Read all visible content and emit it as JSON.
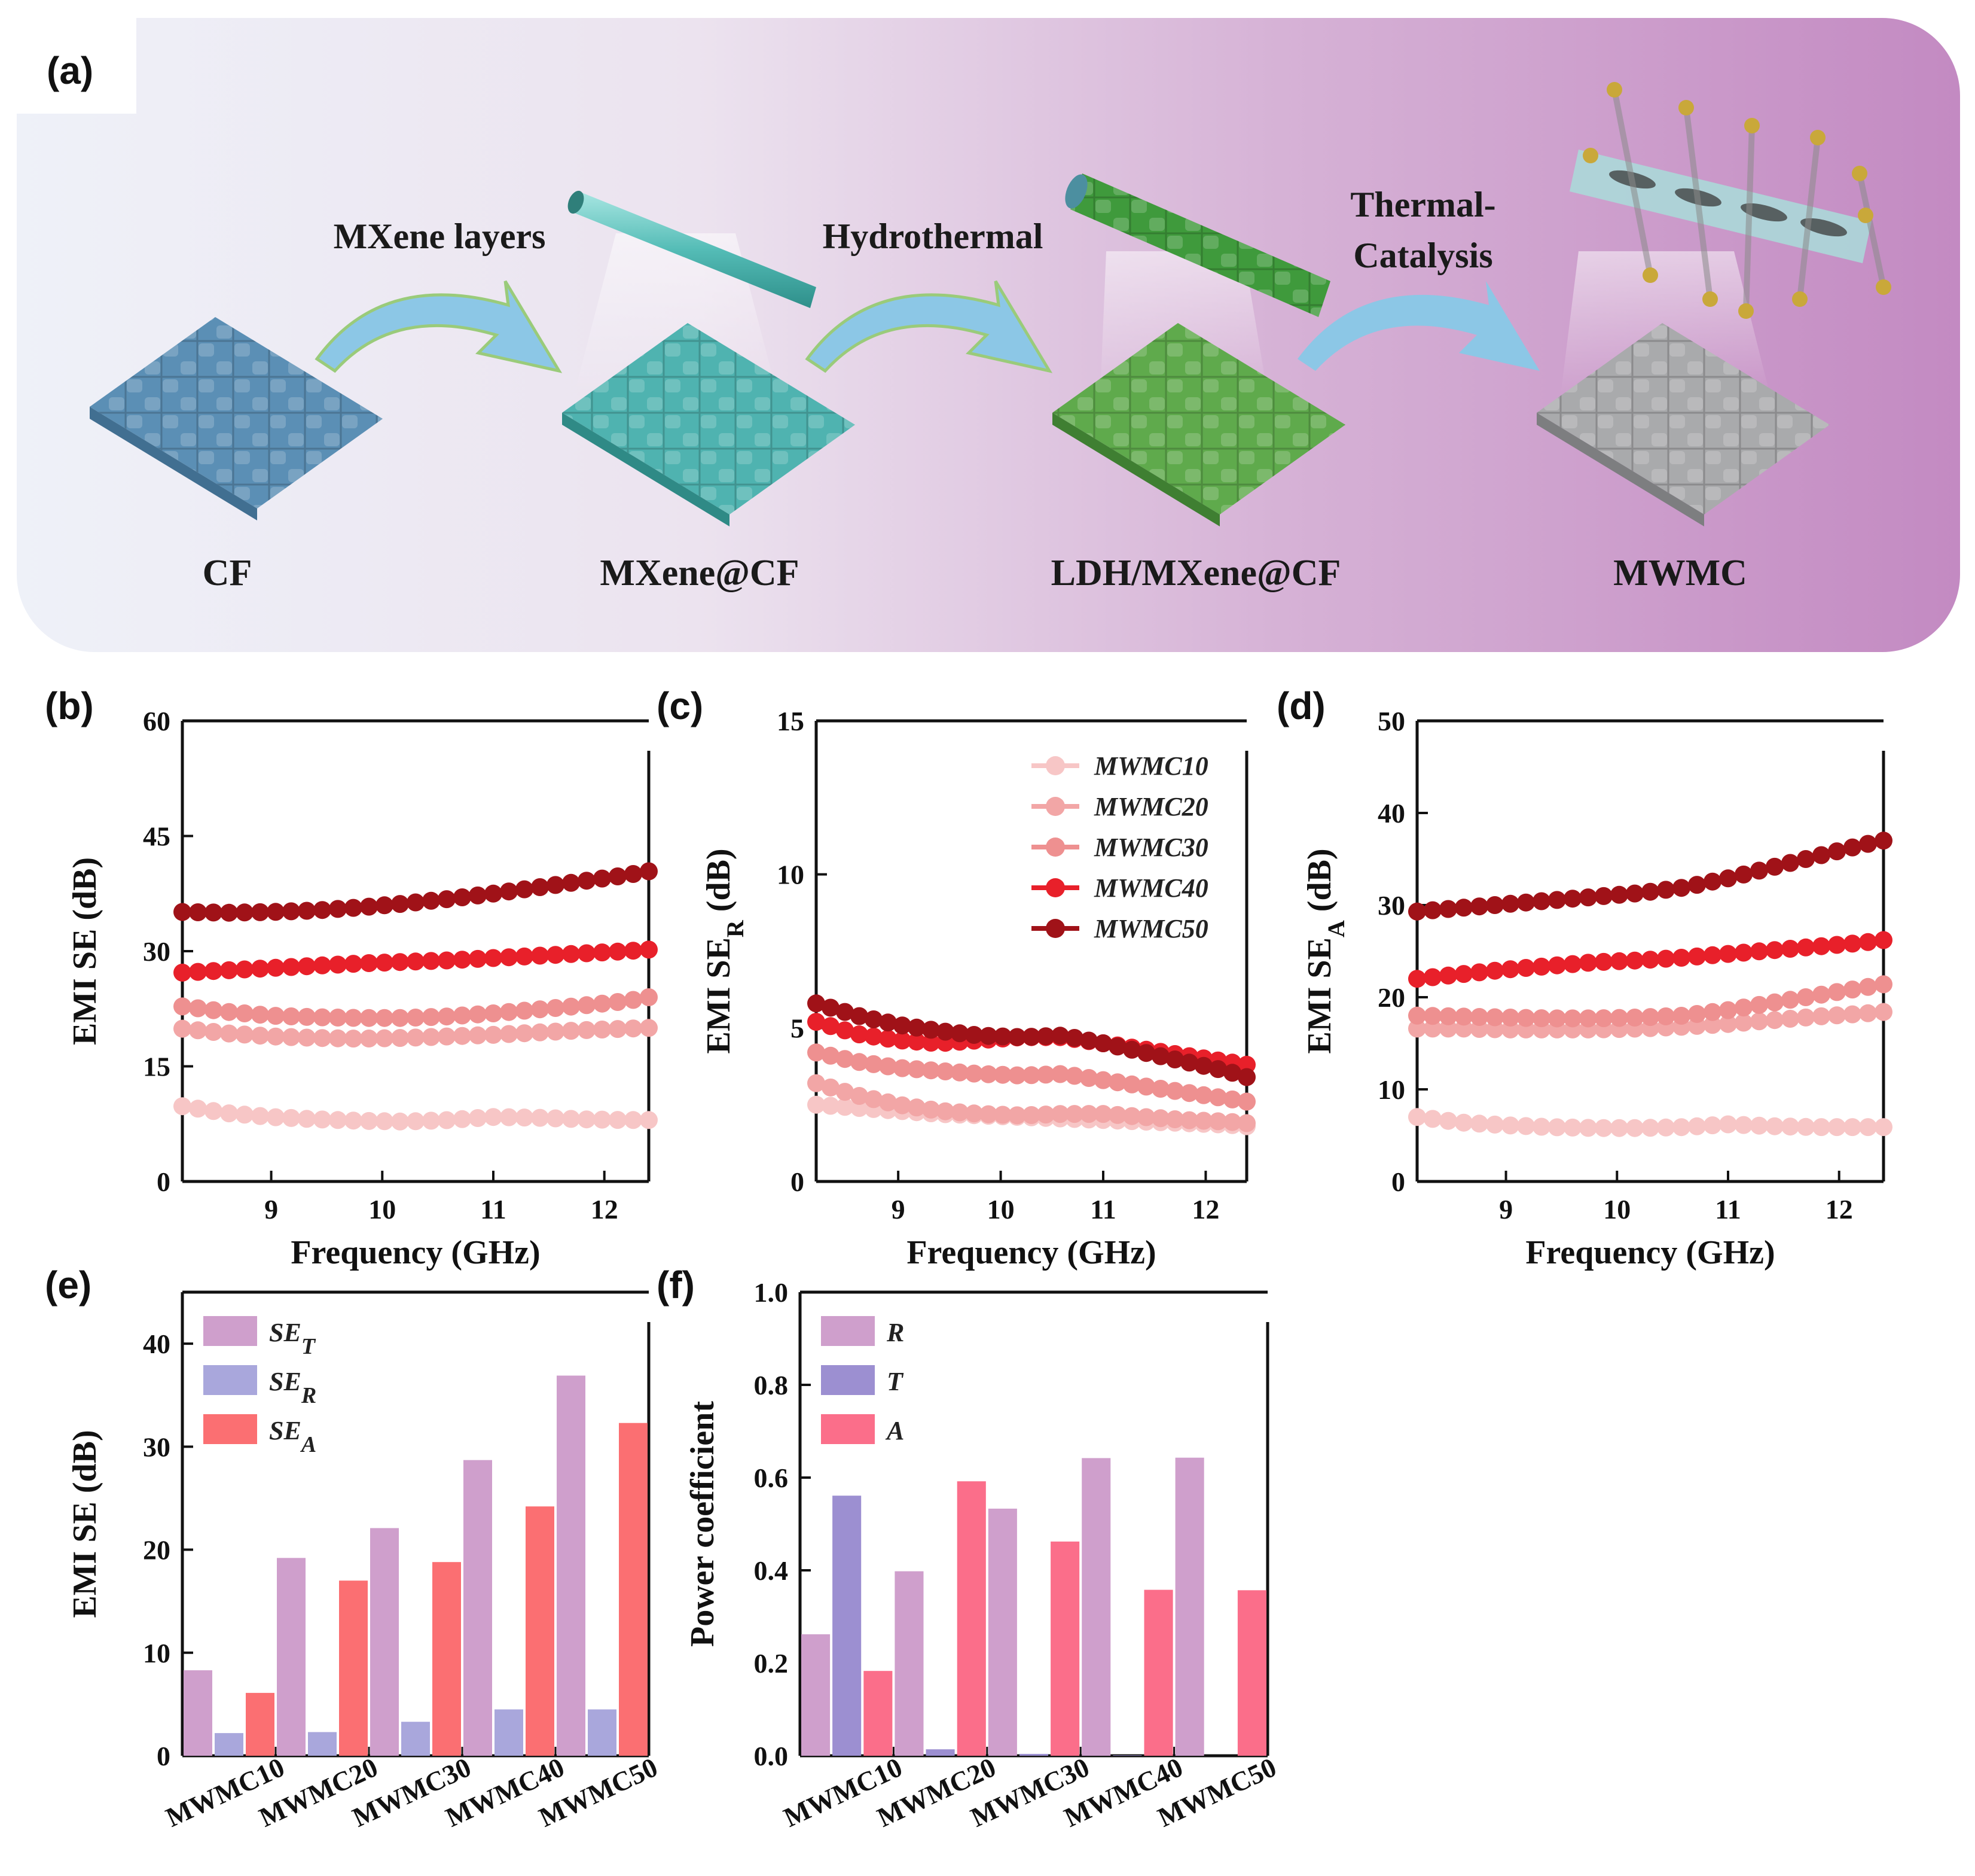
{
  "panel_labels": {
    "a": "(a)",
    "b": "(b)",
    "c": "(c)",
    "d": "(d)",
    "e": "(e)",
    "f": "(f)"
  },
  "scheme": {
    "stages": [
      "CF",
      "MXene@CF",
      "LDH/MXene@CF",
      "MWMC"
    ],
    "steps": [
      "MXene layers",
      "Hydrothermal",
      "Thermal-",
      "Catalysis"
    ],
    "colors": {
      "cf": "#5b8fb5",
      "mxene": "#4fb3b0",
      "ldh": "#5faa4c",
      "mwmc": "#a9aaac",
      "arrow": "#8cc7e6"
    }
  },
  "series_colors": [
    "#f7c6c6",
    "#f2a6a6",
    "#ee9090",
    "#e8202a",
    "#a01218"
  ],
  "bar_colors": {
    "SE_T": "#cf9fcc",
    "SE_R": "#a9a7dc",
    "SE_A": "#fb6f72",
    "R": "#cf9fcc",
    "T": "#9c8fd1",
    "A": "#fb6e8a"
  },
  "chart_data": [
    {
      "id": "b",
      "type": "scatter",
      "title": "",
      "xlabel": "Frequency (GHz)",
      "ylabel": "EMI SE (dB)",
      "xlim": [
        8.2,
        12.4
      ],
      "ylim": [
        0,
        60
      ],
      "xticks": [
        "9",
        "10",
        "11",
        "12"
      ],
      "yticks": [
        "0",
        "15",
        "30",
        "45",
        "60"
      ],
      "y_top_label": "60",
      "x": [
        8.2,
        8.6,
        9.0,
        9.4,
        9.8,
        10.2,
        10.6,
        11.0,
        11.4,
        11.8,
        12.2,
        12.4
      ],
      "series": [
        {
          "name": "MWMC10",
          "values": [
            9.8,
            8.9,
            8.4,
            8.1,
            7.9,
            7.8,
            8.0,
            8.4,
            8.3,
            8.1,
            8.0,
            8.0
          ]
        },
        {
          "name": "MWMC20",
          "values": [
            19.9,
            19.3,
            18.9,
            18.7,
            18.6,
            18.7,
            18.9,
            19.1,
            19.4,
            19.7,
            19.9,
            20.0
          ]
        },
        {
          "name": "MWMC30",
          "values": [
            22.8,
            22.1,
            21.6,
            21.4,
            21.3,
            21.3,
            21.5,
            21.9,
            22.4,
            22.9,
            23.5,
            24.0
          ]
        },
        {
          "name": "MWMC40",
          "values": [
            27.2,
            27.5,
            27.8,
            28.1,
            28.4,
            28.6,
            28.8,
            29.1,
            29.4,
            29.7,
            30.0,
            30.2
          ]
        },
        {
          "name": "MWMC50",
          "values": [
            35.1,
            35.0,
            35.1,
            35.3,
            35.7,
            36.2,
            36.8,
            37.5,
            38.3,
            39.1,
            39.9,
            40.4
          ]
        }
      ]
    },
    {
      "id": "c",
      "type": "scatter",
      "title": "",
      "xlabel": "Frequency (GHz)",
      "ylabel": "EMI SE",
      "ylabel_sub": "R",
      "ylabel_unit": "(dB)",
      "xlim": [
        8.2,
        12.4
      ],
      "ylim": [
        0,
        15
      ],
      "xticks": [
        "9",
        "10",
        "11",
        "12"
      ],
      "yticks": [
        "0",
        "5",
        "10",
        "15"
      ],
      "legend": [
        "MWMC10",
        "MWMC20",
        "MWMC30",
        "MWMC40",
        "MWMC50"
      ],
      "x": [
        8.2,
        8.6,
        9.0,
        9.4,
        9.8,
        10.2,
        10.6,
        11.0,
        11.4,
        11.8,
        12.2,
        12.4
      ],
      "series": [
        {
          "name": "MWMC10",
          "values": [
            2.5,
            2.4,
            2.3,
            2.2,
            2.15,
            2.1,
            2.05,
            2.0,
            1.95,
            1.9,
            1.85,
            1.8
          ]
        },
        {
          "name": "MWMC20",
          "values": [
            3.2,
            2.8,
            2.5,
            2.3,
            2.2,
            2.15,
            2.2,
            2.2,
            2.1,
            2.0,
            1.95,
            1.9
          ]
        },
        {
          "name": "MWMC30",
          "values": [
            4.2,
            3.9,
            3.7,
            3.6,
            3.5,
            3.45,
            3.5,
            3.3,
            3.1,
            2.9,
            2.7,
            2.6
          ]
        },
        {
          "name": "MWMC40",
          "values": [
            5.2,
            4.8,
            4.6,
            4.5,
            4.6,
            4.7,
            4.7,
            4.5,
            4.3,
            4.1,
            3.9,
            3.8
          ]
        },
        {
          "name": "MWMC50",
          "values": [
            5.8,
            5.4,
            5.1,
            4.9,
            4.75,
            4.7,
            4.75,
            4.5,
            4.2,
            3.9,
            3.6,
            3.4
          ]
        }
      ]
    },
    {
      "id": "d",
      "type": "scatter",
      "title": "",
      "xlabel": "Frequency (GHz)",
      "ylabel": "EMI SE",
      "ylabel_sub": "A",
      "ylabel_unit": "(dB)",
      "xlim": [
        8.2,
        12.4
      ],
      "ylim": [
        0,
        50
      ],
      "xticks": [
        "9",
        "10",
        "11",
        "12"
      ],
      "yticks": [
        "0",
        "10",
        "20",
        "30",
        "40",
        "50"
      ],
      "x": [
        8.2,
        8.6,
        9.0,
        9.4,
        9.8,
        10.2,
        10.6,
        11.0,
        11.4,
        11.8,
        12.2,
        12.4
      ],
      "series": [
        {
          "name": "MWMC10",
          "values": [
            7.0,
            6.4,
            6.1,
            5.9,
            5.8,
            5.8,
            5.9,
            6.2,
            6.0,
            5.9,
            5.9,
            5.9
          ]
        },
        {
          "name": "MWMC20",
          "values": [
            16.6,
            16.6,
            16.5,
            16.5,
            16.5,
            16.6,
            16.8,
            17.1,
            17.5,
            17.9,
            18.2,
            18.4
          ]
        },
        {
          "name": "MWMC30",
          "values": [
            18.0,
            17.9,
            17.8,
            17.7,
            17.7,
            17.8,
            18.0,
            18.6,
            19.4,
            20.2,
            21.0,
            21.4
          ]
        },
        {
          "name": "MWMC40",
          "values": [
            22.0,
            22.5,
            23.0,
            23.4,
            23.8,
            24.0,
            24.3,
            24.7,
            25.1,
            25.5,
            25.9,
            26.2
          ]
        },
        {
          "name": "MWMC50",
          "values": [
            29.3,
            29.7,
            30.1,
            30.5,
            30.9,
            31.3,
            31.9,
            32.9,
            34.1,
            35.3,
            36.5,
            37.0
          ]
        }
      ]
    },
    {
      "id": "e",
      "type": "bar",
      "title": "",
      "xlabel": "",
      "ylabel": "EMI SE (dB)",
      "ylim": [
        0,
        45
      ],
      "yticks": [
        "0",
        "10",
        "20",
        "30",
        "40"
      ],
      "categories": [
        "MWMC10",
        "MWMC20",
        "MWMC30",
        "MWMC40",
        "MWMC50"
      ],
      "series": [
        {
          "name": "SE",
          "sub": "T",
          "values": [
            8.3,
            19.2,
            22.1,
            28.7,
            36.9
          ]
        },
        {
          "name": "SE",
          "sub": "R",
          "values": [
            2.2,
            2.3,
            3.3,
            4.5,
            4.5
          ]
        },
        {
          "name": "SE",
          "sub": "A",
          "values": [
            6.1,
            17.0,
            18.8,
            24.2,
            32.3
          ]
        }
      ]
    },
    {
      "id": "f",
      "type": "bar",
      "title": "",
      "xlabel": "",
      "ylabel": "Power coefficient",
      "ylim": [
        0.0,
        1.0
      ],
      "yticks": [
        "0.0",
        "0.2",
        "0.4",
        "0.6",
        "0.8",
        "1.0"
      ],
      "categories": [
        "MWMC10",
        "MWMC20",
        "MWMC30",
        "MWMC40",
        "MWMC50"
      ],
      "series": [
        {
          "name": "R",
          "values": [
            0.262,
            0.398,
            0.533,
            0.642,
            0.643
          ]
        },
        {
          "name": "T",
          "values": [
            0.561,
            0.014,
            0.004,
            0.001,
            0.0
          ]
        },
        {
          "name": "A",
          "values": [
            0.183,
            0.592,
            0.462,
            0.358,
            0.357
          ]
        }
      ]
    }
  ]
}
